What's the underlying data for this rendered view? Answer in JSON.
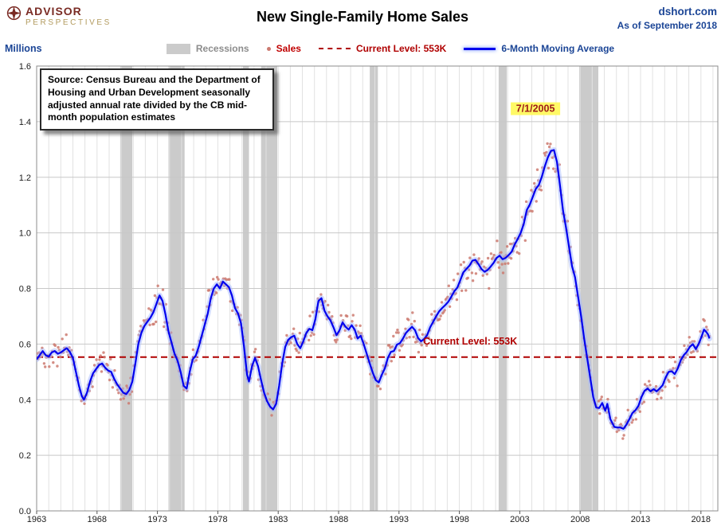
{
  "header": {
    "logo_top": "ADVISOR",
    "logo_bottom": "PERSPECTIVES",
    "title": "New Single-Family Home Sales",
    "site": "dshort.com",
    "as_of": "As of September 2018"
  },
  "legend": {
    "y_axis_label": "Millions",
    "items": [
      {
        "label": "Recessions"
      },
      {
        "label": "Sales"
      },
      {
        "label": "Current Level: 553K"
      },
      {
        "label": "6-Month Moving Average"
      }
    ]
  },
  "annotations": {
    "source_note": "Source: Census Bureau and the Department of Housing and Urban Development seasonally adjusted annual rate divided by the CB mid-month population estimates",
    "peak_label": "7/1/2005",
    "current_level_label": "Current Level: 553K"
  },
  "colors": {
    "accent_blue": "#1b4596",
    "line_blue": "#0000ee",
    "line_glow": "#a3b8ff",
    "sales_dot": "#cc7a70",
    "current_red": "#b00000",
    "recession_gray": "#cbcbcb",
    "logo_red": "#7a2b24",
    "logo_gold": "#b29a5d",
    "peak_highlight": "#fff966",
    "peak_text": "#9e1a1a"
  },
  "chart_data": {
    "type": "line",
    "title": "New Single-Family Home Sales",
    "xlabel": "",
    "ylabel": "Millions",
    "ylim": [
      0.0,
      1.6
    ],
    "ytick_step": 0.2,
    "xlim": [
      1963,
      2019.4
    ],
    "xticks": [
      1963,
      1968,
      1973,
      1978,
      1983,
      1988,
      1993,
      1998,
      2003,
      2008,
      2013,
      2018
    ],
    "grid": true,
    "legend_position": "top",
    "current_level": 0.553,
    "current_level_text_pos": {
      "x": 1998.9,
      "y": 0.598
    },
    "peak_annotation": {
      "x": 2004.3,
      "y": 1.435,
      "text": "7/1/2005"
    },
    "recessions": [
      [
        1969.92,
        1970.92
      ],
      [
        1973.92,
        1975.25
      ],
      [
        1980.08,
        1980.58
      ],
      [
        1981.58,
        1982.92
      ],
      [
        1990.58,
        1991.25
      ],
      [
        2001.25,
        2001.92
      ],
      [
        2007.92,
        2009.5
      ]
    ],
    "series": [
      {
        "name": "Sales",
        "type": "scatter",
        "estimated": true,
        "derived_from": "6-Month Moving Average",
        "noise_base": 0.02,
        "noise_scale": 0.045,
        "seed": 42,
        "start": 1963.04,
        "end": 2018.71,
        "step_months": 1
      },
      {
        "name": "6-Month Moving Average",
        "type": "line",
        "points": [
          [
            1963.0,
            0.545
          ],
          [
            1963.25,
            0.56
          ],
          [
            1963.5,
            0.575
          ],
          [
            1963.75,
            0.56
          ],
          [
            1964.0,
            0.555
          ],
          [
            1964.25,
            0.57
          ],
          [
            1964.5,
            0.575
          ],
          [
            1964.75,
            0.565
          ],
          [
            1965.0,
            0.57
          ],
          [
            1965.25,
            0.578
          ],
          [
            1965.5,
            0.585
          ],
          [
            1965.75,
            0.572
          ],
          [
            1966.0,
            0.55
          ],
          [
            1966.25,
            0.5
          ],
          [
            1966.5,
            0.45
          ],
          [
            1966.75,
            0.412
          ],
          [
            1966.92,
            0.4
          ],
          [
            1967.17,
            0.425
          ],
          [
            1967.42,
            0.465
          ],
          [
            1967.67,
            0.495
          ],
          [
            1967.92,
            0.51
          ],
          [
            1968.17,
            0.525
          ],
          [
            1968.42,
            0.53
          ],
          [
            1968.67,
            0.515
          ],
          [
            1968.92,
            0.505
          ],
          [
            1969.17,
            0.5
          ],
          [
            1969.42,
            0.475
          ],
          [
            1969.67,
            0.455
          ],
          [
            1969.92,
            0.44
          ],
          [
            1970.17,
            0.425
          ],
          [
            1970.42,
            0.42
          ],
          [
            1970.67,
            0.435
          ],
          [
            1970.92,
            0.465
          ],
          [
            1971.17,
            0.53
          ],
          [
            1971.42,
            0.6
          ],
          [
            1971.67,
            0.64
          ],
          [
            1971.92,
            0.665
          ],
          [
            1972.17,
            0.68
          ],
          [
            1972.42,
            0.695
          ],
          [
            1972.67,
            0.715
          ],
          [
            1972.92,
            0.745
          ],
          [
            1973.17,
            0.775
          ],
          [
            1973.42,
            0.755
          ],
          [
            1973.67,
            0.705
          ],
          [
            1973.92,
            0.645
          ],
          [
            1974.17,
            0.605
          ],
          [
            1974.42,
            0.565
          ],
          [
            1974.67,
            0.54
          ],
          [
            1974.92,
            0.5
          ],
          [
            1975.17,
            0.45
          ],
          [
            1975.42,
            0.44
          ],
          [
            1975.67,
            0.5
          ],
          [
            1975.92,
            0.545
          ],
          [
            1976.17,
            0.558
          ],
          [
            1976.42,
            0.59
          ],
          [
            1976.67,
            0.63
          ],
          [
            1976.92,
            0.67
          ],
          [
            1977.17,
            0.71
          ],
          [
            1977.42,
            0.765
          ],
          [
            1977.67,
            0.8
          ],
          [
            1977.92,
            0.815
          ],
          [
            1978.17,
            0.8
          ],
          [
            1978.42,
            0.825
          ],
          [
            1978.67,
            0.815
          ],
          [
            1978.92,
            0.805
          ],
          [
            1979.17,
            0.775
          ],
          [
            1979.42,
            0.73
          ],
          [
            1979.67,
            0.71
          ],
          [
            1979.92,
            0.675
          ],
          [
            1980.17,
            0.59
          ],
          [
            1980.42,
            0.49
          ],
          [
            1980.58,
            0.465
          ],
          [
            1980.83,
            0.52
          ],
          [
            1981.08,
            0.55
          ],
          [
            1981.33,
            0.52
          ],
          [
            1981.58,
            0.47
          ],
          [
            1981.83,
            0.425
          ],
          [
            1982.08,
            0.395
          ],
          [
            1982.33,
            0.375
          ],
          [
            1982.58,
            0.365
          ],
          [
            1982.83,
            0.385
          ],
          [
            1983.08,
            0.45
          ],
          [
            1983.33,
            0.53
          ],
          [
            1983.58,
            0.59
          ],
          [
            1983.83,
            0.615
          ],
          [
            1984.08,
            0.625
          ],
          [
            1984.33,
            0.63
          ],
          [
            1984.58,
            0.6
          ],
          [
            1984.83,
            0.585
          ],
          [
            1985.08,
            0.61
          ],
          [
            1985.33,
            0.64
          ],
          [
            1985.58,
            0.655
          ],
          [
            1985.83,
            0.65
          ],
          [
            1986.08,
            0.69
          ],
          [
            1986.33,
            0.755
          ],
          [
            1986.58,
            0.765
          ],
          [
            1986.83,
            0.72
          ],
          [
            1987.08,
            0.7
          ],
          [
            1987.33,
            0.685
          ],
          [
            1987.58,
            0.66
          ],
          [
            1987.83,
            0.632
          ],
          [
            1988.08,
            0.65
          ],
          [
            1988.33,
            0.678
          ],
          [
            1988.58,
            0.662
          ],
          [
            1988.83,
            0.652
          ],
          [
            1989.08,
            0.668
          ],
          [
            1989.33,
            0.652
          ],
          [
            1989.58,
            0.62
          ],
          [
            1989.83,
            0.63
          ],
          [
            1990.08,
            0.6
          ],
          [
            1990.33,
            0.565
          ],
          [
            1990.58,
            0.53
          ],
          [
            1990.83,
            0.497
          ],
          [
            1991.08,
            0.47
          ],
          [
            1991.33,
            0.462
          ],
          [
            1991.58,
            0.49
          ],
          [
            1991.83,
            0.513
          ],
          [
            1992.08,
            0.55
          ],
          [
            1992.33,
            0.572
          ],
          [
            1992.58,
            0.575
          ],
          [
            1992.83,
            0.598
          ],
          [
            1993.08,
            0.603
          ],
          [
            1993.33,
            0.62
          ],
          [
            1993.58,
            0.64
          ],
          [
            1993.83,
            0.652
          ],
          [
            1994.08,
            0.662
          ],
          [
            1994.33,
            0.65
          ],
          [
            1994.58,
            0.622
          ],
          [
            1994.83,
            0.61
          ],
          [
            1995.08,
            0.618
          ],
          [
            1995.33,
            0.632
          ],
          [
            1995.58,
            0.66
          ],
          [
            1995.83,
            0.68
          ],
          [
            1996.08,
            0.7
          ],
          [
            1996.33,
            0.718
          ],
          [
            1996.58,
            0.73
          ],
          [
            1996.83,
            0.74
          ],
          [
            1997.08,
            0.752
          ],
          [
            1997.33,
            0.77
          ],
          [
            1997.58,
            0.79
          ],
          [
            1997.83,
            0.803
          ],
          [
            1998.08,
            0.83
          ],
          [
            1998.33,
            0.858
          ],
          [
            1998.58,
            0.87
          ],
          [
            1998.83,
            0.882
          ],
          [
            1999.08,
            0.9
          ],
          [
            1999.33,
            0.903
          ],
          [
            1999.58,
            0.888
          ],
          [
            1999.83,
            0.87
          ],
          [
            2000.08,
            0.86
          ],
          [
            2000.33,
            0.866
          ],
          [
            2000.58,
            0.878
          ],
          [
            2000.83,
            0.892
          ],
          [
            2001.08,
            0.91
          ],
          [
            2001.33,
            0.918
          ],
          [
            2001.58,
            0.905
          ],
          [
            2001.83,
            0.91
          ],
          [
            2002.08,
            0.92
          ],
          [
            2002.33,
            0.932
          ],
          [
            2002.58,
            0.958
          ],
          [
            2002.83,
            0.978
          ],
          [
            2003.08,
            1.0
          ],
          [
            2003.33,
            1.032
          ],
          [
            2003.58,
            1.082
          ],
          [
            2003.83,
            1.102
          ],
          [
            2004.08,
            1.13
          ],
          [
            2004.33,
            1.158
          ],
          [
            2004.58,
            1.172
          ],
          [
            2004.83,
            1.202
          ],
          [
            2005.08,
            1.24
          ],
          [
            2005.33,
            1.272
          ],
          [
            2005.58,
            1.295
          ],
          [
            2005.83,
            1.298
          ],
          [
            2006.08,
            1.255
          ],
          [
            2006.33,
            1.17
          ],
          [
            2006.58,
            1.08
          ],
          [
            2006.83,
            1.02
          ],
          [
            2007.08,
            0.95
          ],
          [
            2007.33,
            0.88
          ],
          [
            2007.58,
            0.84
          ],
          [
            2007.83,
            0.77
          ],
          [
            2008.08,
            0.7
          ],
          [
            2008.33,
            0.62
          ],
          [
            2008.58,
            0.55
          ],
          [
            2008.83,
            0.48
          ],
          [
            2009.08,
            0.41
          ],
          [
            2009.33,
            0.372
          ],
          [
            2009.58,
            0.37
          ],
          [
            2009.83,
            0.388
          ],
          [
            2010.08,
            0.36
          ],
          [
            2010.25,
            0.385
          ],
          [
            2010.5,
            0.33
          ],
          [
            2010.83,
            0.302
          ],
          [
            2011.08,
            0.3
          ],
          [
            2011.33,
            0.3
          ],
          [
            2011.58,
            0.295
          ],
          [
            2011.83,
            0.31
          ],
          [
            2012.08,
            0.33
          ],
          [
            2012.33,
            0.352
          ],
          [
            2012.58,
            0.362
          ],
          [
            2012.83,
            0.378
          ],
          [
            2013.08,
            0.41
          ],
          [
            2013.33,
            0.432
          ],
          [
            2013.58,
            0.44
          ],
          [
            2013.83,
            0.43
          ],
          [
            2014.08,
            0.438
          ],
          [
            2014.33,
            0.43
          ],
          [
            2014.58,
            0.44
          ],
          [
            2014.83,
            0.452
          ],
          [
            2015.08,
            0.48
          ],
          [
            2015.33,
            0.5
          ],
          [
            2015.58,
            0.502
          ],
          [
            2015.83,
            0.492
          ],
          [
            2016.08,
            0.512
          ],
          [
            2016.33,
            0.542
          ],
          [
            2016.58,
            0.56
          ],
          [
            2016.83,
            0.572
          ],
          [
            2017.08,
            0.59
          ],
          [
            2017.33,
            0.6
          ],
          [
            2017.58,
            0.582
          ],
          [
            2017.83,
            0.602
          ],
          [
            2018.08,
            0.63
          ],
          [
            2018.25,
            0.652
          ],
          [
            2018.42,
            0.645
          ],
          [
            2018.58,
            0.635
          ],
          [
            2018.71,
            0.62
          ]
        ]
      }
    ]
  }
}
